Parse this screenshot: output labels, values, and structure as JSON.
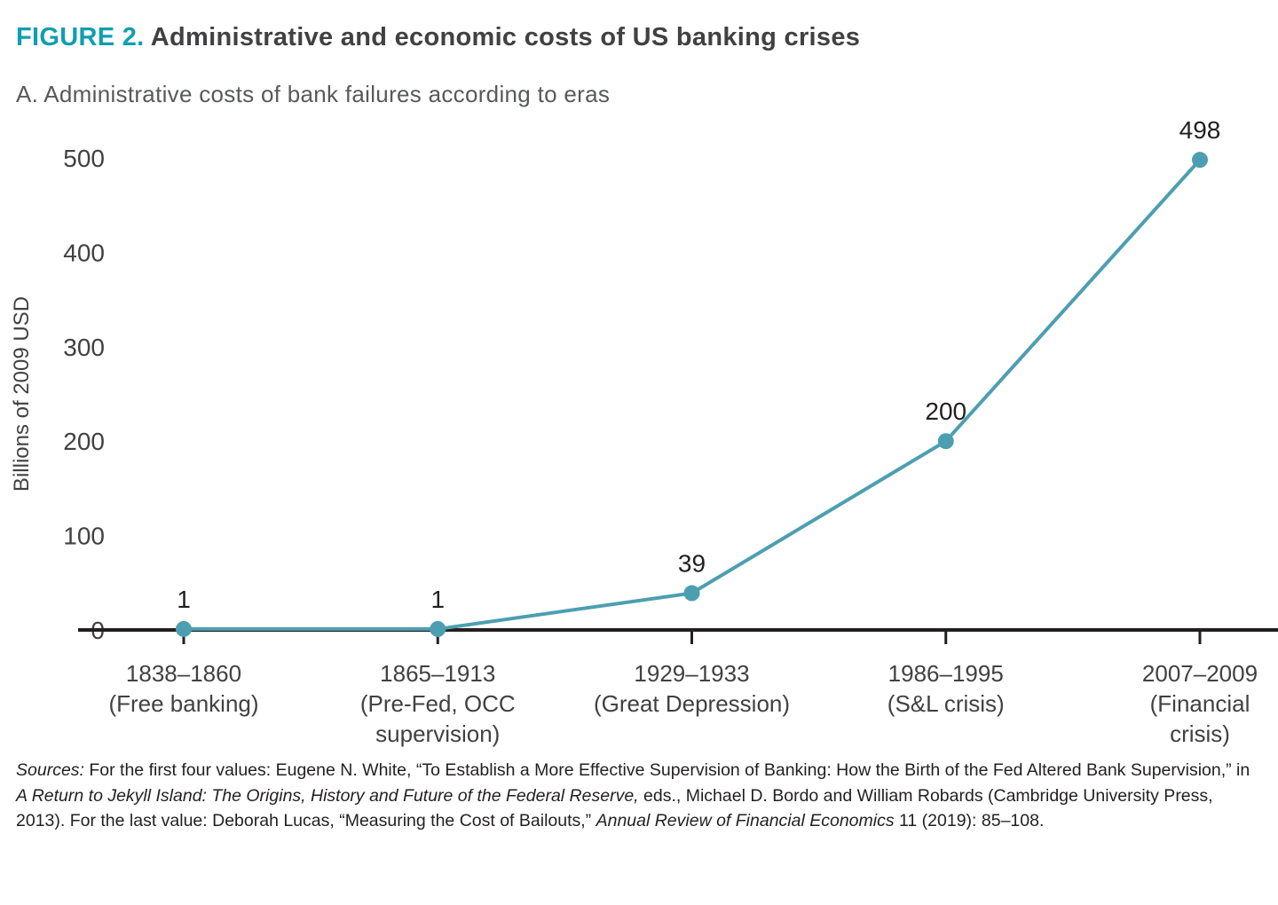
{
  "figure": {
    "label": "FIGURE 2.",
    "title": "Administrative and economic costs of US banking crises",
    "subtitle": "A. Administrative costs of bank failures according to eras"
  },
  "colors": {
    "figure_label_teal": "#0e9fb0",
    "line_teal": "#4c9fb1",
    "axis_black": "#231f20"
  },
  "chart_data": {
    "type": "line",
    "categories": [
      [
        "1838–1860",
        "(Free banking)"
      ],
      [
        "1865–1913",
        "(Pre-Fed, OCC",
        "supervision)"
      ],
      [
        "1929–1933",
        "(Great Depression)"
      ],
      [
        "1986–1995",
        "(S&L crisis)"
      ],
      [
        "2007–2009",
        "(Financial",
        "crisis)"
      ]
    ],
    "values": [
      1,
      1,
      39,
      200,
      498
    ],
    "value_labels": [
      "1",
      "1",
      "39",
      "200",
      "498"
    ],
    "title": "A. Administrative costs of bank failures according to eras",
    "xlabel": "",
    "ylabel": "Billions of 2009 USD",
    "ylim": [
      0,
      500
    ],
    "yticks": [
      0,
      100,
      200,
      300,
      400,
      500
    ],
    "grid": false,
    "legend": "none",
    "line_color": "#4c9fb1",
    "marker_color": "#4c9fb1"
  },
  "sources": {
    "parts": [
      {
        "text": "Sources:",
        "style": "italic"
      },
      {
        "text": " For the first four values: Eugene N. White, “To Establish a More Effective Supervision of Banking: How the Birth of the Fed Altered Bank Supervision,” in ",
        "style": "normal"
      },
      {
        "text": "A Return to Jekyll Island: The Origins, History and Future of the Federal Reserve,",
        "style": "italic"
      },
      {
        "text": " eds., Michael D. Bordo and William Robards (Cambridge University Press, 2013). For the last value: Deborah Lucas, “Measuring the Cost of Bailouts,” ",
        "style": "normal"
      },
      {
        "text": "Annual Review of Financial Economics",
        "style": "italic"
      },
      {
        "text": " 11 (2019): 85–108.",
        "style": "normal"
      }
    ]
  }
}
